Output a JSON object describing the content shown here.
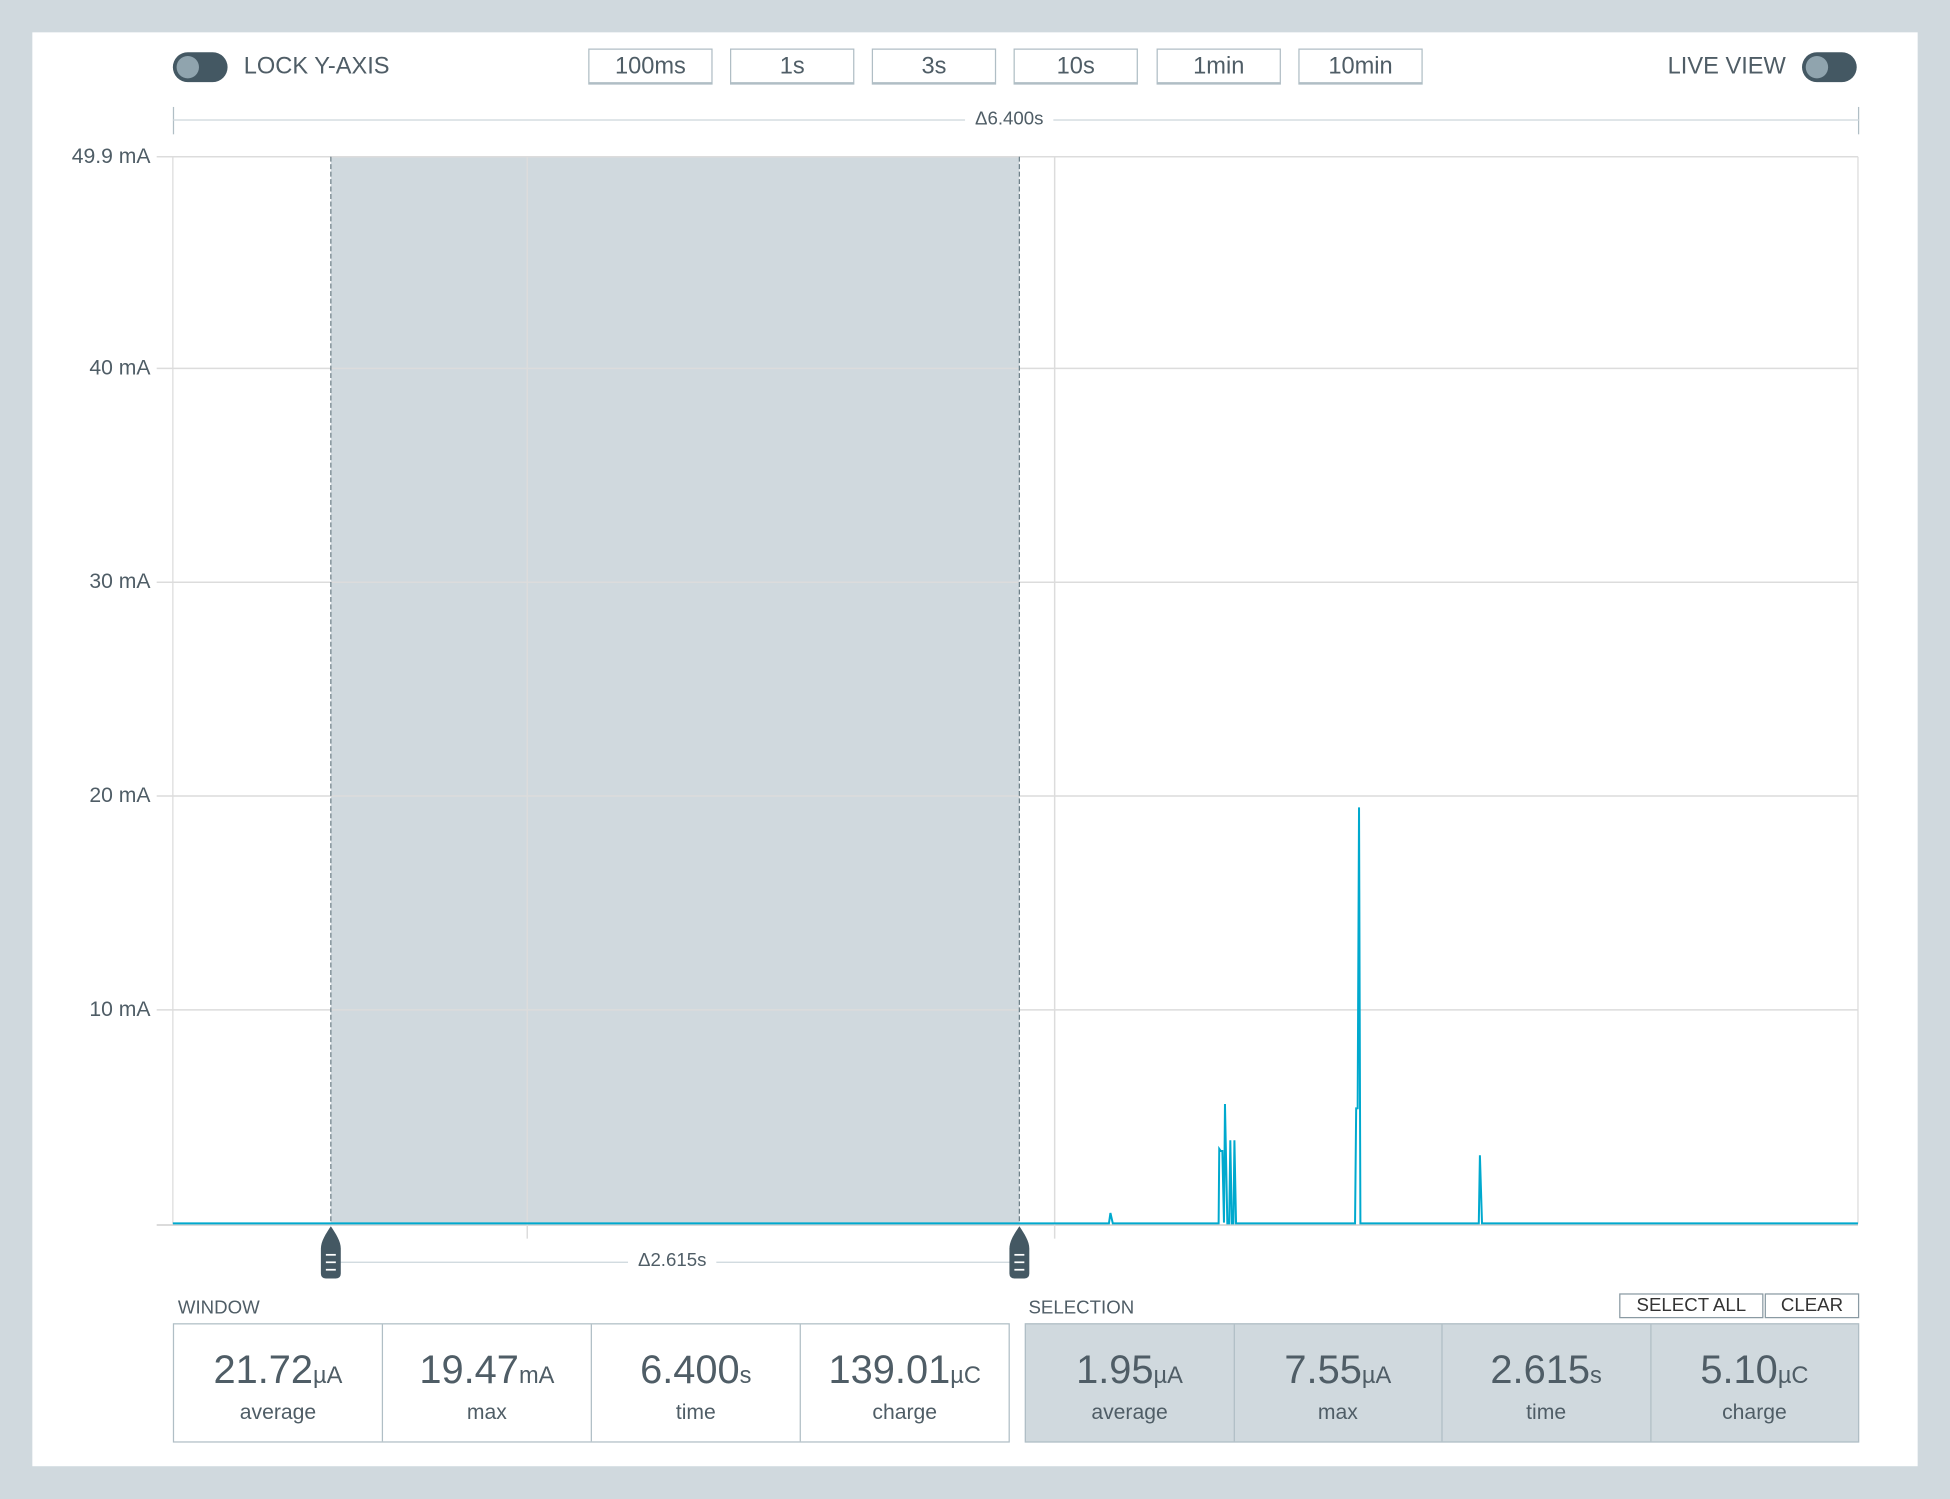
{
  "header": {
    "lock_y_axis_label": "LOCK Y-AXIS",
    "lock_y_axis_on": false,
    "live_view_label": "LIVE VIEW",
    "live_view_on": false,
    "window_buttons": [
      "100ms",
      "1s",
      "3s",
      "10s",
      "1min",
      "10min"
    ]
  },
  "window_duration_label": "Δ6.400s",
  "selection_duration_label": "Δ2.615s",
  "chart_data": {
    "type": "line",
    "xlabel": "",
    "ylabel": "",
    "xlim": [
      0,
      6.4
    ],
    "ylim": [
      0,
      49.9
    ],
    "y_unit": "mA",
    "y_ticks": [
      10,
      20,
      30,
      40
    ],
    "y_tick_labels": [
      "10 mA",
      "20 mA",
      "30 mA",
      "40 mA"
    ],
    "y_max_label": "49.9 mA",
    "x_gridlines": [
      1.346,
      3.349
    ],
    "grid": true,
    "selection": [
      0.6,
      3.215
    ],
    "series": [
      {
        "color": "#00a9ce",
        "points": [
          [
            0,
            0.02
          ],
          [
            3.555,
            0.02
          ],
          [
            3.561,
            0.5
          ],
          [
            3.57,
            0.02
          ],
          [
            3.972,
            0.02
          ],
          [
            3.974,
            3.5
          ],
          [
            3.98,
            3.4
          ],
          [
            3.986,
            3.4
          ],
          [
            3.992,
            0.05
          ],
          [
            3.996,
            5.6
          ],
          [
            4.005,
            0.02
          ],
          [
            4.012,
            0.02
          ],
          [
            4.016,
            3.9
          ],
          [
            4.022,
            0.02
          ],
          [
            4.028,
            0.02
          ],
          [
            4.032,
            3.9
          ],
          [
            4.038,
            0.02
          ],
          [
            4.49,
            0.02
          ],
          [
            4.494,
            5.4
          ],
          [
            4.5,
            5.4
          ],
          [
            4.505,
            19.47
          ],
          [
            4.51,
            0.02
          ],
          [
            4.96,
            0.02
          ],
          [
            4.964,
            3.2
          ],
          [
            4.972,
            0.02
          ],
          [
            6.4,
            0.02
          ]
        ]
      }
    ]
  },
  "window_stats": {
    "title": "WINDOW",
    "items": [
      {
        "value": "21.72",
        "unit": "µA",
        "caption": "average"
      },
      {
        "value": "19.47",
        "unit": "mA",
        "caption": "max"
      },
      {
        "value": "6.400",
        "unit": "s",
        "caption": "time"
      },
      {
        "value": "139.01",
        "unit": "µC",
        "caption": "charge"
      }
    ]
  },
  "selection_stats": {
    "title": "SELECTION",
    "select_all_label": "SELECT ALL",
    "clear_label": "CLEAR",
    "items": [
      {
        "value": "1.95",
        "unit": "µA",
        "caption": "average"
      },
      {
        "value": "7.55",
        "unit": "µA",
        "caption": "max"
      },
      {
        "value": "2.615",
        "unit": "s",
        "caption": "time"
      },
      {
        "value": "5.10",
        "unit": "µC",
        "caption": "charge"
      }
    ]
  },
  "colors": {
    "trace": "#00a9ce",
    "selection": "#d0d9de",
    "handle": "#445863",
    "background": "#d0d9de"
  }
}
